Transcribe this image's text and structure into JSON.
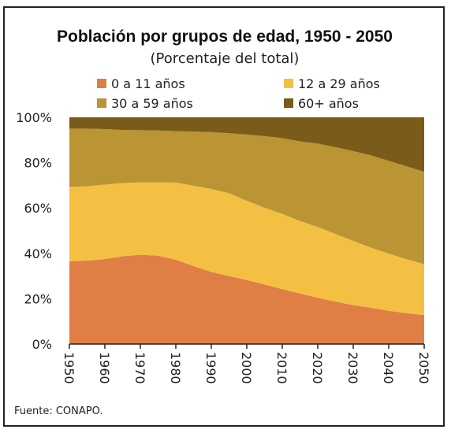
{
  "chart_data": {
    "type": "area",
    "stacked": true,
    "title": "Población por grupos de edad, 1950 - 2050",
    "subtitle": "(Porcentaje del total)",
    "source": "Fuente: CONAPO.",
    "x": [
      1950,
      1955,
      1960,
      1965,
      1970,
      1975,
      1980,
      1985,
      1990,
      1995,
      2000,
      2005,
      2010,
      2015,
      2020,
      2025,
      2030,
      2035,
      2040,
      2045,
      2050
    ],
    "xticks": [
      "1950",
      "1960",
      "1970",
      "1980",
      "1990",
      "2000",
      "2010",
      "2020",
      "2030",
      "2040",
      "2050"
    ],
    "yticks": [
      "0%",
      "20%",
      "40%",
      "60%",
      "80%",
      "100%"
    ],
    "ylim": [
      0,
      100
    ],
    "legend_position": "top",
    "series": [
      {
        "name": "0 a 11 años",
        "color": "#E07F45",
        "values": [
          36.5,
          36.8,
          37.5,
          38.7,
          39.4,
          39.0,
          37.2,
          34.4,
          31.8,
          30.0,
          28.2,
          26.3,
          24.2,
          22.3,
          20.4,
          18.7,
          17.2,
          16.0,
          14.7,
          13.6,
          12.8
        ]
      },
      {
        "name": "12 a 29 años",
        "color": "#F4C044",
        "values": [
          32.8,
          32.8,
          32.8,
          32.3,
          31.9,
          32.3,
          34.0,
          35.4,
          36.6,
          36.5,
          35.0,
          33.8,
          33.2,
          32.0,
          31.2,
          29.8,
          28.3,
          26.5,
          25.2,
          23.8,
          22.4
        ]
      },
      {
        "name": "30 a 59 años",
        "color": "#BB9433",
        "values": [
          25.7,
          25.4,
          24.5,
          23.4,
          23.0,
          22.9,
          22.7,
          23.9,
          25.1,
          26.5,
          29.2,
          31.6,
          33.4,
          35.1,
          36.8,
          38.3,
          39.6,
          40.7,
          40.9,
          41.0,
          40.8
        ]
      },
      {
        "name": "60+ años",
        "color": "#7A5B19",
        "values": [
          5.0,
          5.0,
          5.2,
          5.6,
          5.7,
          5.8,
          6.1,
          6.3,
          6.5,
          7.0,
          7.6,
          8.3,
          9.2,
          10.6,
          11.6,
          13.2,
          14.9,
          16.8,
          19.2,
          21.6,
          24.0
        ]
      }
    ]
  }
}
